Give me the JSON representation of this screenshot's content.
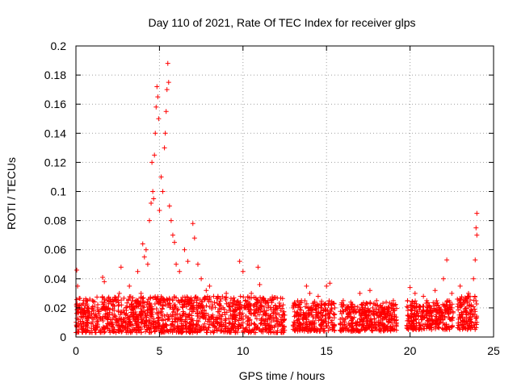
{
  "chart_data": {
    "type": "scatter",
    "title": "Day 110 of 2021, Rate Of TEC Index for receiver glps",
    "xlabel": "GPS time / hours",
    "ylabel": "ROTI / TECUs",
    "xlim": [
      0,
      25
    ],
    "ylim": [
      0,
      0.2
    ],
    "xticks": [
      0,
      5,
      10,
      15,
      20,
      25
    ],
    "xtick_labels": [
      "0",
      "5",
      "10",
      "15",
      "20",
      "25"
    ],
    "yticks": [
      0,
      0.02,
      0.04,
      0.06,
      0.08,
      0.1,
      0.12,
      0.14,
      0.16,
      0.18,
      0.2
    ],
    "ytick_labels": [
      "0",
      "0.02",
      "0.04",
      "0.06",
      "0.08",
      "0.1",
      "0.12",
      "0.14",
      "0.16",
      "0.18",
      "0.2"
    ],
    "grid": true,
    "marker": "+",
    "color": "#ff0000",
    "series": [
      {
        "name": "ROTI",
        "points": [
          [
            0.05,
            0.046
          ],
          [
            0.1,
            0.035
          ],
          [
            0.15,
            0.012
          ],
          [
            0.3,
            0.022
          ],
          [
            0.5,
            0.018
          ],
          [
            0.8,
            0.015
          ],
          [
            1.0,
            0.025
          ],
          [
            1.3,
            0.02
          ],
          [
            1.6,
            0.041
          ],
          [
            1.7,
            0.038
          ],
          [
            2.0,
            0.015
          ],
          [
            2.4,
            0.012
          ],
          [
            2.6,
            0.03
          ],
          [
            2.7,
            0.048
          ],
          [
            3.0,
            0.02
          ],
          [
            3.2,
            0.035
          ],
          [
            3.5,
            0.02
          ],
          [
            3.7,
            0.045
          ],
          [
            3.9,
            0.03
          ],
          [
            4.0,
            0.064
          ],
          [
            4.1,
            0.055
          ],
          [
            4.2,
            0.06
          ],
          [
            4.3,
            0.05
          ],
          [
            4.4,
            0.08
          ],
          [
            4.5,
            0.092
          ],
          [
            4.55,
            0.12
          ],
          [
            4.6,
            0.1
          ],
          [
            4.65,
            0.095
          ],
          [
            4.7,
            0.125
          ],
          [
            4.75,
            0.14
          ],
          [
            4.8,
            0.158
          ],
          [
            4.85,
            0.172
          ],
          [
            4.9,
            0.165
          ],
          [
            4.95,
            0.15
          ],
          [
            5.0,
            0.087
          ],
          [
            5.1,
            0.11
          ],
          [
            5.2,
            0.1
          ],
          [
            5.3,
            0.13
          ],
          [
            5.35,
            0.14
          ],
          [
            5.4,
            0.155
          ],
          [
            5.45,
            0.17
          ],
          [
            5.5,
            0.188
          ],
          [
            5.55,
            0.175
          ],
          [
            5.6,
            0.09
          ],
          [
            5.7,
            0.08
          ],
          [
            5.8,
            0.07
          ],
          [
            5.9,
            0.065
          ],
          [
            6.0,
            0.05
          ],
          [
            6.2,
            0.045
          ],
          [
            6.5,
            0.06
          ],
          [
            6.7,
            0.052
          ],
          [
            7.0,
            0.078
          ],
          [
            7.1,
            0.068
          ],
          [
            7.3,
            0.05
          ],
          [
            7.5,
            0.04
          ],
          [
            7.8,
            0.032
          ],
          [
            8.0,
            0.035
          ],
          [
            8.5,
            0.028
          ],
          [
            9.0,
            0.03
          ],
          [
            9.5,
            0.025
          ],
          [
            9.8,
            0.052
          ],
          [
            10.0,
            0.045
          ],
          [
            10.5,
            0.03
          ],
          [
            10.9,
            0.048
          ],
          [
            11.0,
            0.036
          ],
          [
            11.5,
            0.025
          ],
          [
            12.0,
            0.02
          ],
          [
            12.5,
            0.015
          ],
          [
            13.0,
            0.02
          ],
          [
            13.5,
            0.025
          ],
          [
            13.8,
            0.035
          ],
          [
            14.0,
            0.03
          ],
          [
            14.5,
            0.028
          ],
          [
            15.0,
            0.035
          ],
          [
            15.2,
            0.037
          ],
          [
            15.5,
            0.02
          ],
          [
            16.0,
            0.025
          ],
          [
            16.5,
            0.02
          ],
          [
            17.0,
            0.03
          ],
          [
            17.6,
            0.032
          ],
          [
            18.0,
            0.025
          ],
          [
            18.5,
            0.02
          ],
          [
            19.0,
            0.025
          ],
          [
            20.0,
            0.034
          ],
          [
            20.3,
            0.03
          ],
          [
            20.8,
            0.028
          ],
          [
            21.0,
            0.025
          ],
          [
            21.5,
            0.032
          ],
          [
            22.0,
            0.04
          ],
          [
            22.2,
            0.053
          ],
          [
            22.5,
            0.03
          ],
          [
            23.0,
            0.035
          ],
          [
            23.5,
            0.03
          ],
          [
            23.8,
            0.04
          ],
          [
            23.9,
            0.053
          ],
          [
            24.0,
            0.085
          ],
          [
            23.95,
            0.075
          ],
          [
            24.0,
            0.07
          ]
        ],
        "baseline_band": [
          {
            "x_from": 0.0,
            "x_to": 12.5,
            "y_from": 0.003,
            "y_to": 0.028
          },
          {
            "x_from": 13.0,
            "x_to": 15.5,
            "y_from": 0.004,
            "y_to": 0.025
          },
          {
            "x_from": 15.8,
            "x_to": 19.2,
            "y_from": 0.004,
            "y_to": 0.024
          },
          {
            "x_from": 19.8,
            "x_to": 22.6,
            "y_from": 0.005,
            "y_to": 0.025
          },
          {
            "x_from": 22.8,
            "x_to": 24.0,
            "y_from": 0.005,
            "y_to": 0.028
          }
        ]
      }
    ]
  }
}
